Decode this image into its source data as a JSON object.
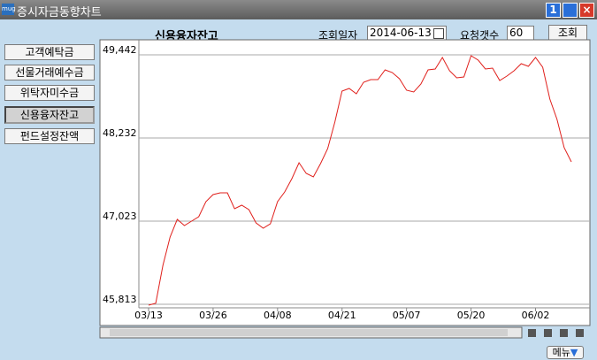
{
  "window": {
    "icon": "mug",
    "title": "증시자금동향차트",
    "badge": "1"
  },
  "sidebar": {
    "buttons": [
      "고객예탁금",
      "선물거래예수금",
      "위탁자미수금",
      "신용융자잔고",
      "펀드설정잔액"
    ]
  },
  "query": {
    "date_label": "조회일자",
    "date": "2014-06-13",
    "count_label": "요청갯수",
    "count": 60,
    "submit": "조회"
  },
  "footer": {
    "menu": "메뉴"
  },
  "chart_data": {
    "type": "line",
    "title": "신용융자잔고",
    "categories": [
      "03/13",
      null,
      null,
      null,
      null,
      null,
      null,
      null,
      null,
      "03/26",
      null,
      null,
      null,
      null,
      null,
      null,
      null,
      null,
      "04/08",
      null,
      null,
      null,
      null,
      null,
      null,
      null,
      null,
      "04/21",
      null,
      null,
      null,
      null,
      null,
      null,
      null,
      null,
      "05/07",
      null,
      null,
      null,
      null,
      null,
      null,
      null,
      null,
      "05/20",
      null,
      null,
      null,
      null,
      null,
      null,
      null,
      null,
      "06/02",
      null,
      null,
      null,
      null,
      null
    ],
    "values": [
      45800,
      45826,
      46379,
      46791,
      47048,
      46958,
      47022,
      47087,
      47306,
      47409,
      47434,
      47434,
      47203,
      47254,
      47190,
      46997,
      46919,
      46984,
      47306,
      47447,
      47640,
      47872,
      47717,
      47666,
      47859,
      48078,
      48464,
      48914,
      48953,
      48876,
      49043,
      49082,
      49082,
      49223,
      49185,
      49095,
      48927,
      48901,
      49017,
      49223,
      49236,
      49403,
      49210,
      49107,
      49120,
      49429,
      49365,
      49236,
      49249,
      49069,
      49133,
      49210,
      49313,
      49275,
      49403,
      49262,
      48798,
      48502,
      48091,
      47885
    ],
    "color": "#e0201c",
    "ylim": [
      45761,
      49661
    ],
    "yticks": [
      {
        "value": 45813,
        "label": "45,813"
      },
      {
        "value": 47023,
        "label": "47,023"
      },
      {
        "value": 48232,
        "label": "48,232"
      },
      {
        "value": 49442,
        "label": "49,442"
      }
    ],
    "grid": true
  }
}
